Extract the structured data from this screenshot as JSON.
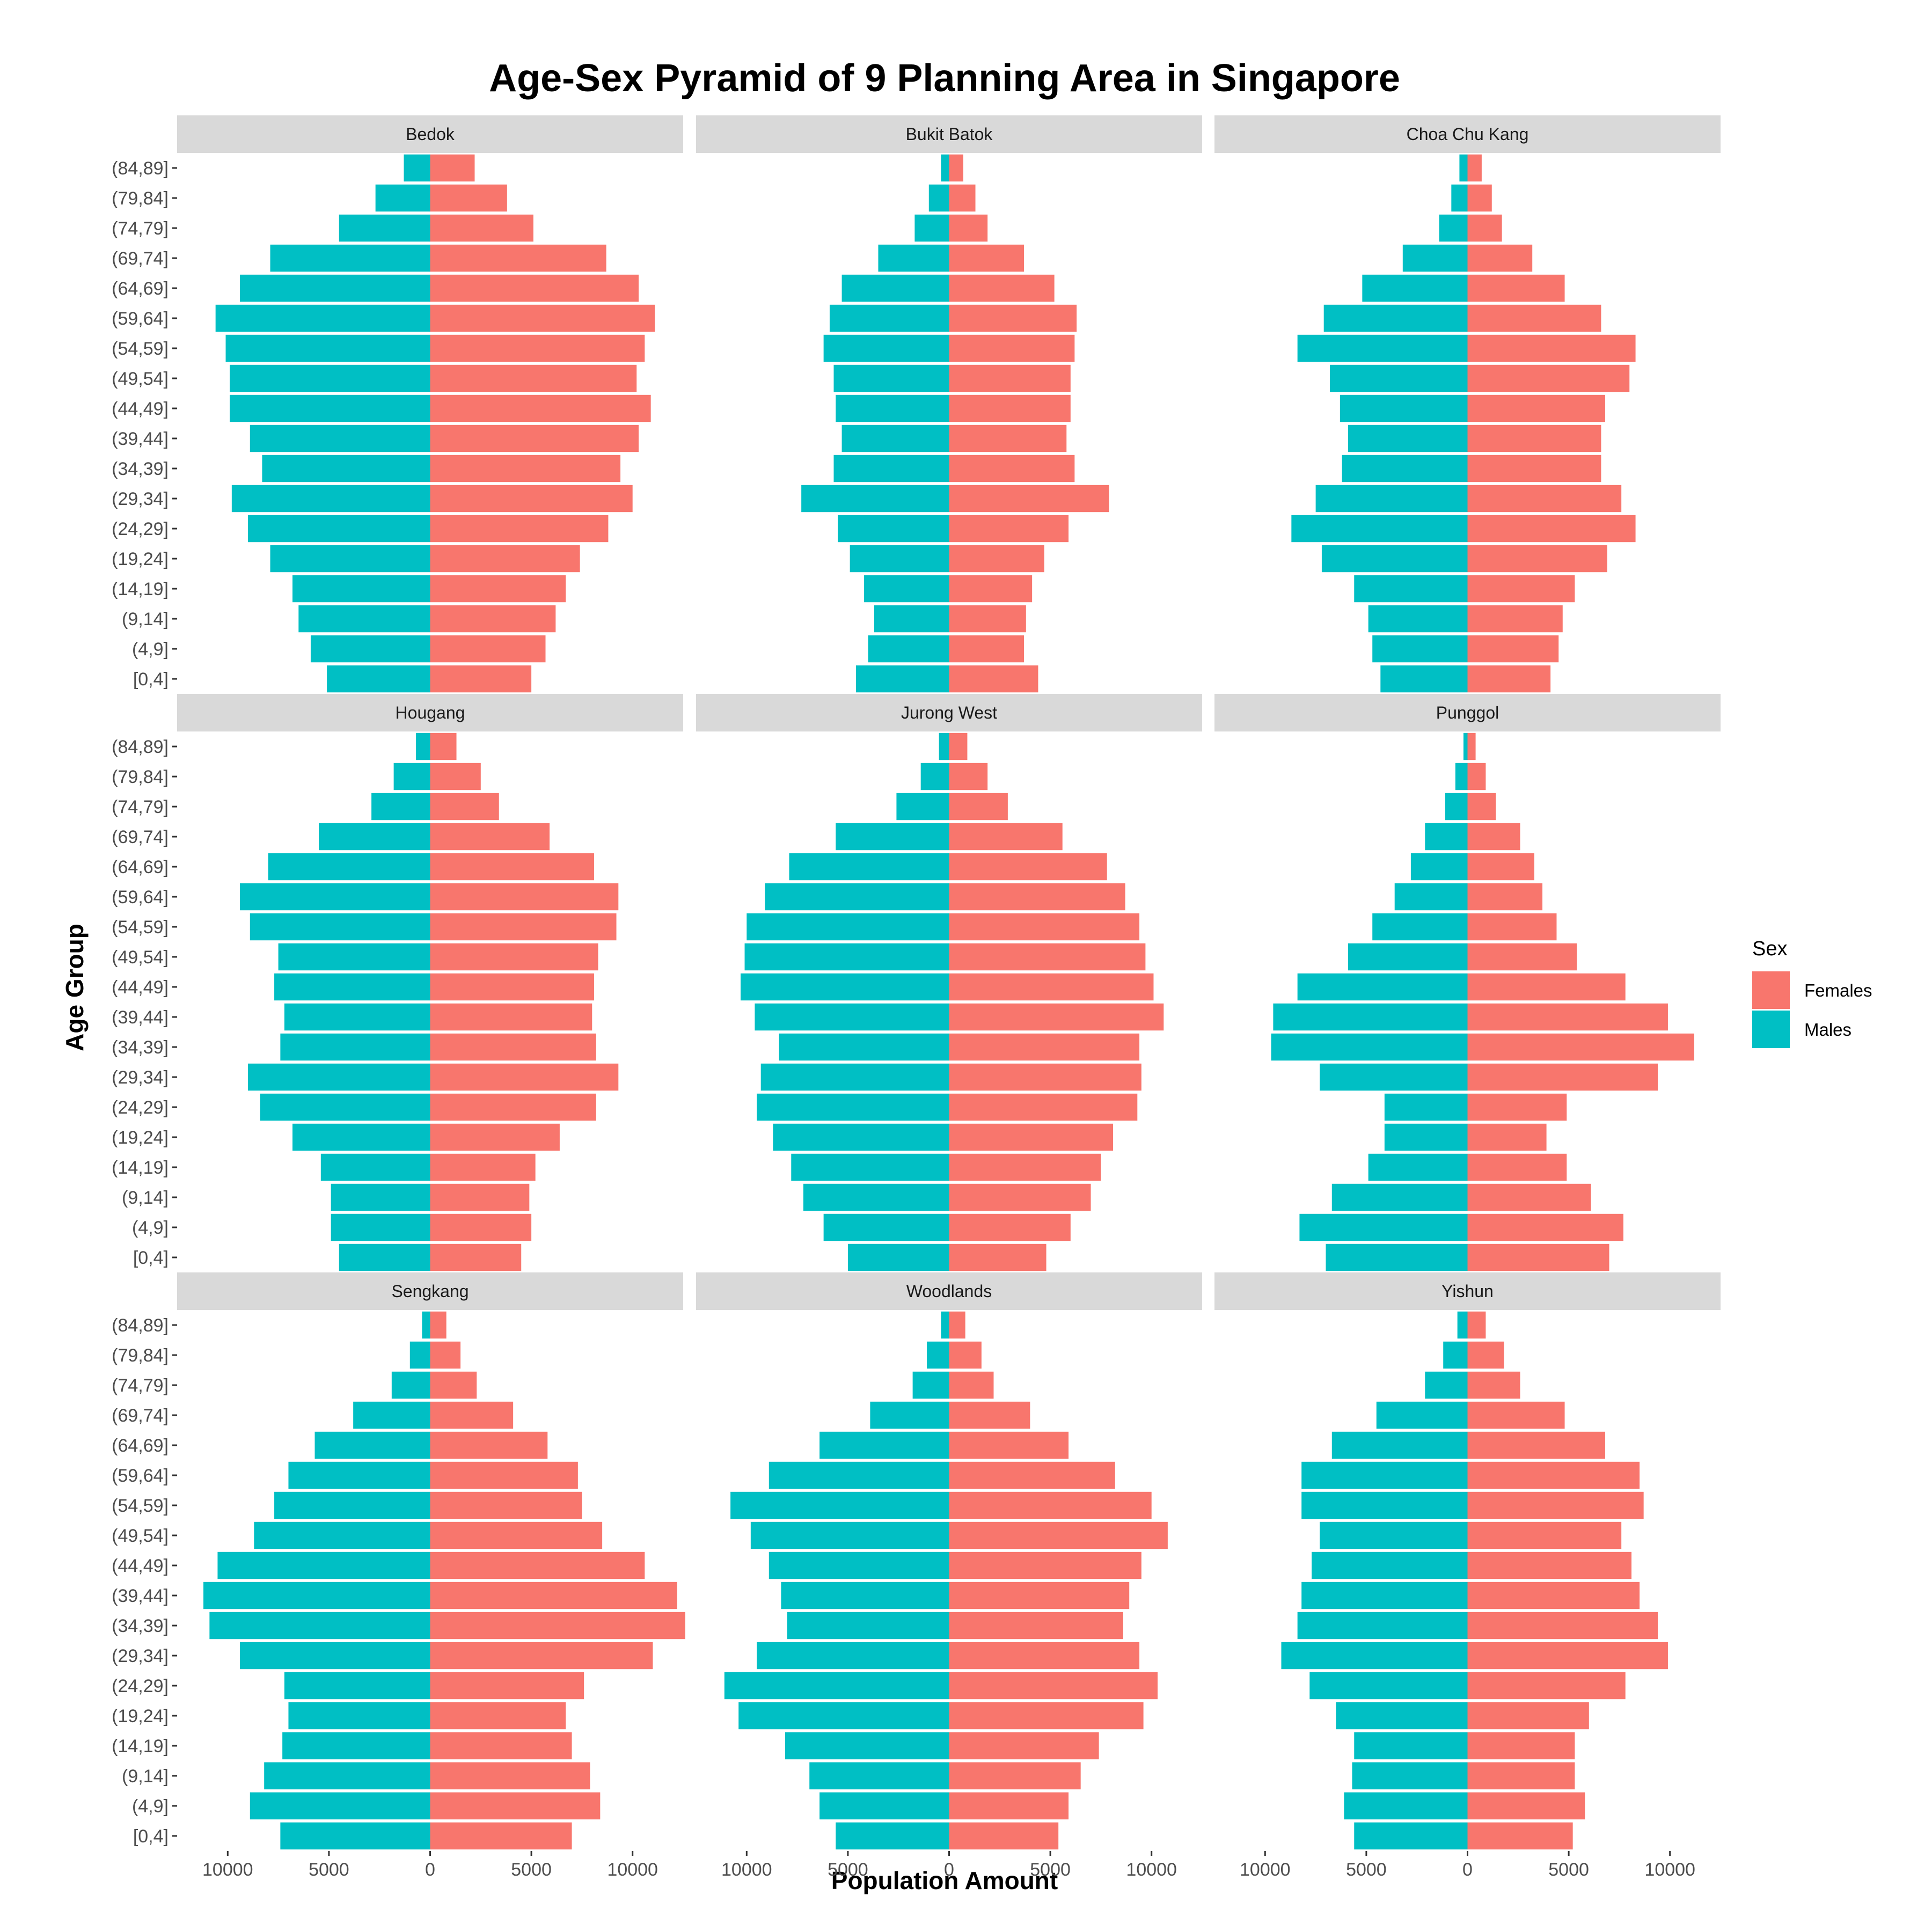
{
  "chart_data": {
    "type": "bar",
    "orientation": "horizontal",
    "title": "Age-Sex Pyramid of 9 Planning Area in Singapore",
    "xlabel": "Population Amount",
    "ylabel": "Age Group",
    "xlim": [
      -12500,
      12500
    ],
    "x_ticks": [
      -10000,
      -5000,
      0,
      5000,
      10000
    ],
    "x_tick_labels": [
      "10000",
      "5000",
      "0",
      "5000",
      "10000"
    ],
    "categories": [
      "[0,4]",
      "(4,9]",
      "(9,14]",
      "(14,19]",
      "(19,24]",
      "(24,29]",
      "(29,34]",
      "(34,39]",
      "(39,44]",
      "(44,49]",
      "(49,54]",
      "(54,59]",
      "(59,64]",
      "(64,69]",
      "(69,74]",
      "(74,79]",
      "(79,84]",
      "(84,89]"
    ],
    "legend": {
      "title": "Sex",
      "position": "right",
      "entries": [
        {
          "label": "Females",
          "color": "#F8766D"
        },
        {
          "label": "Males",
          "color": "#00BFC4"
        }
      ]
    },
    "grid": false,
    "panels": [
      {
        "name": "Bedok",
        "males": [
          5100,
          5900,
          6500,
          6800,
          7900,
          9000,
          9800,
          8300,
          8900,
          9900,
          9900,
          10100,
          10600,
          9400,
          7900,
          4500,
          2700,
          1300
        ],
        "females": [
          5000,
          5700,
          6200,
          6700,
          7400,
          8800,
          10000,
          9400,
          10300,
          10900,
          10200,
          10600,
          11100,
          10300,
          8700,
          5100,
          3800,
          2200
        ]
      },
      {
        "name": "Bukit Batok",
        "males": [
          4600,
          4000,
          3700,
          4200,
          4900,
          5500,
          7300,
          5700,
          5300,
          5600,
          5700,
          6200,
          5900,
          5300,
          3500,
          1700,
          1000,
          400
        ],
        "females": [
          4400,
          3700,
          3800,
          4100,
          4700,
          5900,
          7900,
          6200,
          5800,
          6000,
          6000,
          6200,
          6300,
          5200,
          3700,
          1900,
          1300,
          700
        ]
      },
      {
        "name": "Choa Chu Kang",
        "males": [
          4300,
          4700,
          4900,
          5600,
          7200,
          8700,
          7500,
          6200,
          5900,
          6300,
          6800,
          8400,
          7100,
          5200,
          3200,
          1400,
          800,
          400
        ],
        "females": [
          4100,
          4500,
          4700,
          5300,
          6900,
          8300,
          7600,
          6600,
          6600,
          6800,
          8000,
          8300,
          6600,
          4800,
          3200,
          1700,
          1200,
          700
        ]
      },
      {
        "name": "Hougang",
        "males": [
          4500,
          4900,
          4900,
          5400,
          6800,
          8400,
          9000,
          7400,
          7200,
          7700,
          7500,
          8900,
          9400,
          8000,
          5500,
          2900,
          1800,
          700
        ],
        "females": [
          4500,
          5000,
          4900,
          5200,
          6400,
          8200,
          9300,
          8200,
          8000,
          8100,
          8300,
          9200,
          9300,
          8100,
          5900,
          3400,
          2500,
          1300
        ]
      },
      {
        "name": "Jurong West",
        "males": [
          5000,
          6200,
          7200,
          7800,
          8700,
          9500,
          9300,
          8400,
          9600,
          10300,
          10100,
          10000,
          9100,
          7900,
          5600,
          2600,
          1400,
          500
        ],
        "females": [
          4800,
          6000,
          7000,
          7500,
          8100,
          9300,
          9500,
          9400,
          10600,
          10100,
          9700,
          9400,
          8700,
          7800,
          5600,
          2900,
          1900,
          900
        ]
      },
      {
        "name": "Punggol",
        "males": [
          7000,
          8300,
          6700,
          4900,
          4100,
          4100,
          7300,
          9700,
          9600,
          8400,
          5900,
          4700,
          3600,
          2800,
          2100,
          1100,
          600,
          200
        ],
        "females": [
          7000,
          7700,
          6100,
          4900,
          3900,
          4900,
          9400,
          11200,
          9900,
          7800,
          5400,
          4400,
          3700,
          3300,
          2600,
          1400,
          900,
          400
        ]
      },
      {
        "name": "Sengkang",
        "males": [
          7400,
          8900,
          8200,
          7300,
          7000,
          7200,
          9400,
          10900,
          11200,
          10500,
          8700,
          7700,
          7000,
          5700,
          3800,
          1900,
          1000,
          400
        ],
        "females": [
          7000,
          8400,
          7900,
          7000,
          6700,
          7600,
          11000,
          12600,
          12200,
          10600,
          8500,
          7500,
          7300,
          5800,
          4100,
          2300,
          1500,
          800
        ]
      },
      {
        "name": "Woodlands",
        "males": [
          5600,
          6400,
          6900,
          8100,
          10400,
          11100,
          9500,
          8000,
          8300,
          8900,
          9800,
          10800,
          8900,
          6400,
          3900,
          1800,
          1100,
          400
        ],
        "females": [
          5400,
          5900,
          6500,
          7400,
          9600,
          10300,
          9400,
          8600,
          8900,
          9500,
          10800,
          10000,
          8200,
          5900,
          4000,
          2200,
          1600,
          800
        ]
      },
      {
        "name": "Yishun",
        "males": [
          5600,
          6100,
          5700,
          5600,
          6500,
          7800,
          9200,
          8400,
          8200,
          7700,
          7300,
          8200,
          8200,
          6700,
          4500,
          2100,
          1200,
          500
        ],
        "females": [
          5200,
          5800,
          5300,
          5300,
          6000,
          7800,
          9900,
          9400,
          8500,
          8100,
          7600,
          8700,
          8500,
          6800,
          4800,
          2600,
          1800,
          900
        ]
      }
    ]
  }
}
